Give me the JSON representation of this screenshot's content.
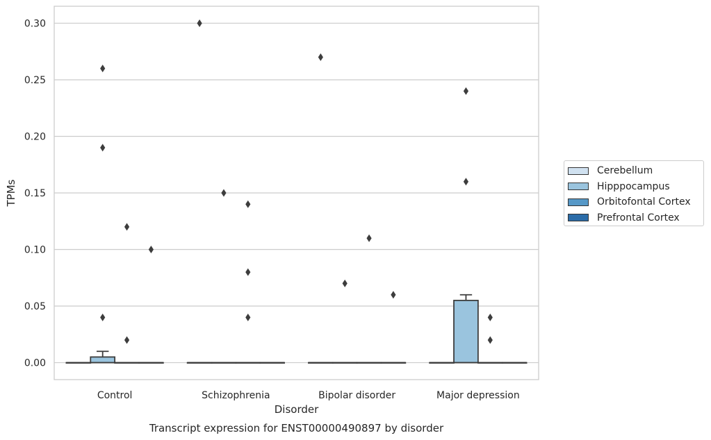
{
  "chart_data": {
    "type": "box",
    "title": "Transcript expression for ENST00000490897 by disorder",
    "xlabel": "Disorder",
    "ylabel": "TPMs",
    "ylim": [
      -0.015,
      0.315
    ],
    "yticks": [
      "0.00",
      "0.05",
      "0.10",
      "0.15",
      "0.20",
      "0.25",
      "0.30"
    ],
    "ytick_values": [
      0,
      0.05,
      0.1,
      0.15,
      0.2,
      0.25,
      0.3
    ],
    "categories": [
      "Control",
      "Schizophrenia",
      "Bipolar disorder",
      "Major depression"
    ],
    "grid": true,
    "legend_position": "right",
    "series": [
      {
        "name": "Cerebellum",
        "color": "#d0e1f0",
        "boxes": [
          {
            "q1": 0,
            "median": 0,
            "q3": 0,
            "whisker_low": 0,
            "whisker_high": 0,
            "outliers": []
          },
          {
            "q1": 0,
            "median": 0,
            "q3": 0,
            "whisker_low": 0,
            "whisker_high": 0,
            "outliers": [
              0.3
            ]
          },
          {
            "q1": 0,
            "median": 0,
            "q3": 0,
            "whisker_low": 0,
            "whisker_high": 0,
            "outliers": [
              0.27
            ]
          },
          {
            "q1": 0,
            "median": 0,
            "q3": 0,
            "whisker_low": 0,
            "whisker_high": 0,
            "outliers": []
          }
        ]
      },
      {
        "name": "Hipppocampus",
        "color": "#9ac4de",
        "boxes": [
          {
            "q1": 0,
            "median": 0,
            "q3": 0.005,
            "whisker_low": 0,
            "whisker_high": 0.01,
            "outliers": [
              0.26,
              0.19,
              0.04
            ]
          },
          {
            "q1": 0,
            "median": 0,
            "q3": 0,
            "whisker_low": 0,
            "whisker_high": 0,
            "outliers": [
              0.15
            ]
          },
          {
            "q1": 0,
            "median": 0,
            "q3": 0,
            "whisker_low": 0,
            "whisker_high": 0,
            "outliers": [
              0.07
            ]
          },
          {
            "q1": 0,
            "median": 0,
            "q3": 0.055,
            "whisker_low": 0,
            "whisker_high": 0.06,
            "outliers": [
              0.24,
              0.16
            ]
          }
        ]
      },
      {
        "name": "Orbitofontal Cortex",
        "color": "#5698c7",
        "boxes": [
          {
            "q1": 0,
            "median": 0,
            "q3": 0,
            "whisker_low": 0,
            "whisker_high": 0,
            "outliers": [
              0.12,
              0.02
            ]
          },
          {
            "q1": 0,
            "median": 0,
            "q3": 0,
            "whisker_low": 0,
            "whisker_high": 0,
            "outliers": [
              0.14,
              0.08,
              0.04
            ]
          },
          {
            "q1": 0,
            "median": 0,
            "q3": 0,
            "whisker_low": 0,
            "whisker_high": 0,
            "outliers": [
              0.11
            ]
          },
          {
            "q1": 0,
            "median": 0,
            "q3": 0,
            "whisker_low": 0,
            "whisker_high": 0,
            "outliers": [
              0.04,
              0.02
            ]
          }
        ]
      },
      {
        "name": "Prefrontal Cortex",
        "color": "#2b6ca8",
        "boxes": [
          {
            "q1": 0,
            "median": 0,
            "q3": 0,
            "whisker_low": 0,
            "whisker_high": 0,
            "outliers": [
              0.1
            ]
          },
          {
            "q1": 0,
            "median": 0,
            "q3": 0,
            "whisker_low": 0,
            "whisker_high": 0,
            "outliers": []
          },
          {
            "q1": 0,
            "median": 0,
            "q3": 0,
            "whisker_low": 0,
            "whisker_high": 0,
            "outliers": [
              0.06
            ]
          },
          {
            "q1": 0,
            "median": 0,
            "q3": 0,
            "whisker_low": 0,
            "whisker_high": 0,
            "outliers": []
          }
        ]
      }
    ]
  },
  "legend": {
    "items": [
      {
        "label": "Cerebellum",
        "color": "#d0e1f0"
      },
      {
        "label": "Hipppocampus",
        "color": "#9ac4de"
      },
      {
        "label": "Orbitofontal Cortex",
        "color": "#5698c7"
      },
      {
        "label": "Prefrontal Cortex",
        "color": "#2b6ca8"
      }
    ]
  }
}
